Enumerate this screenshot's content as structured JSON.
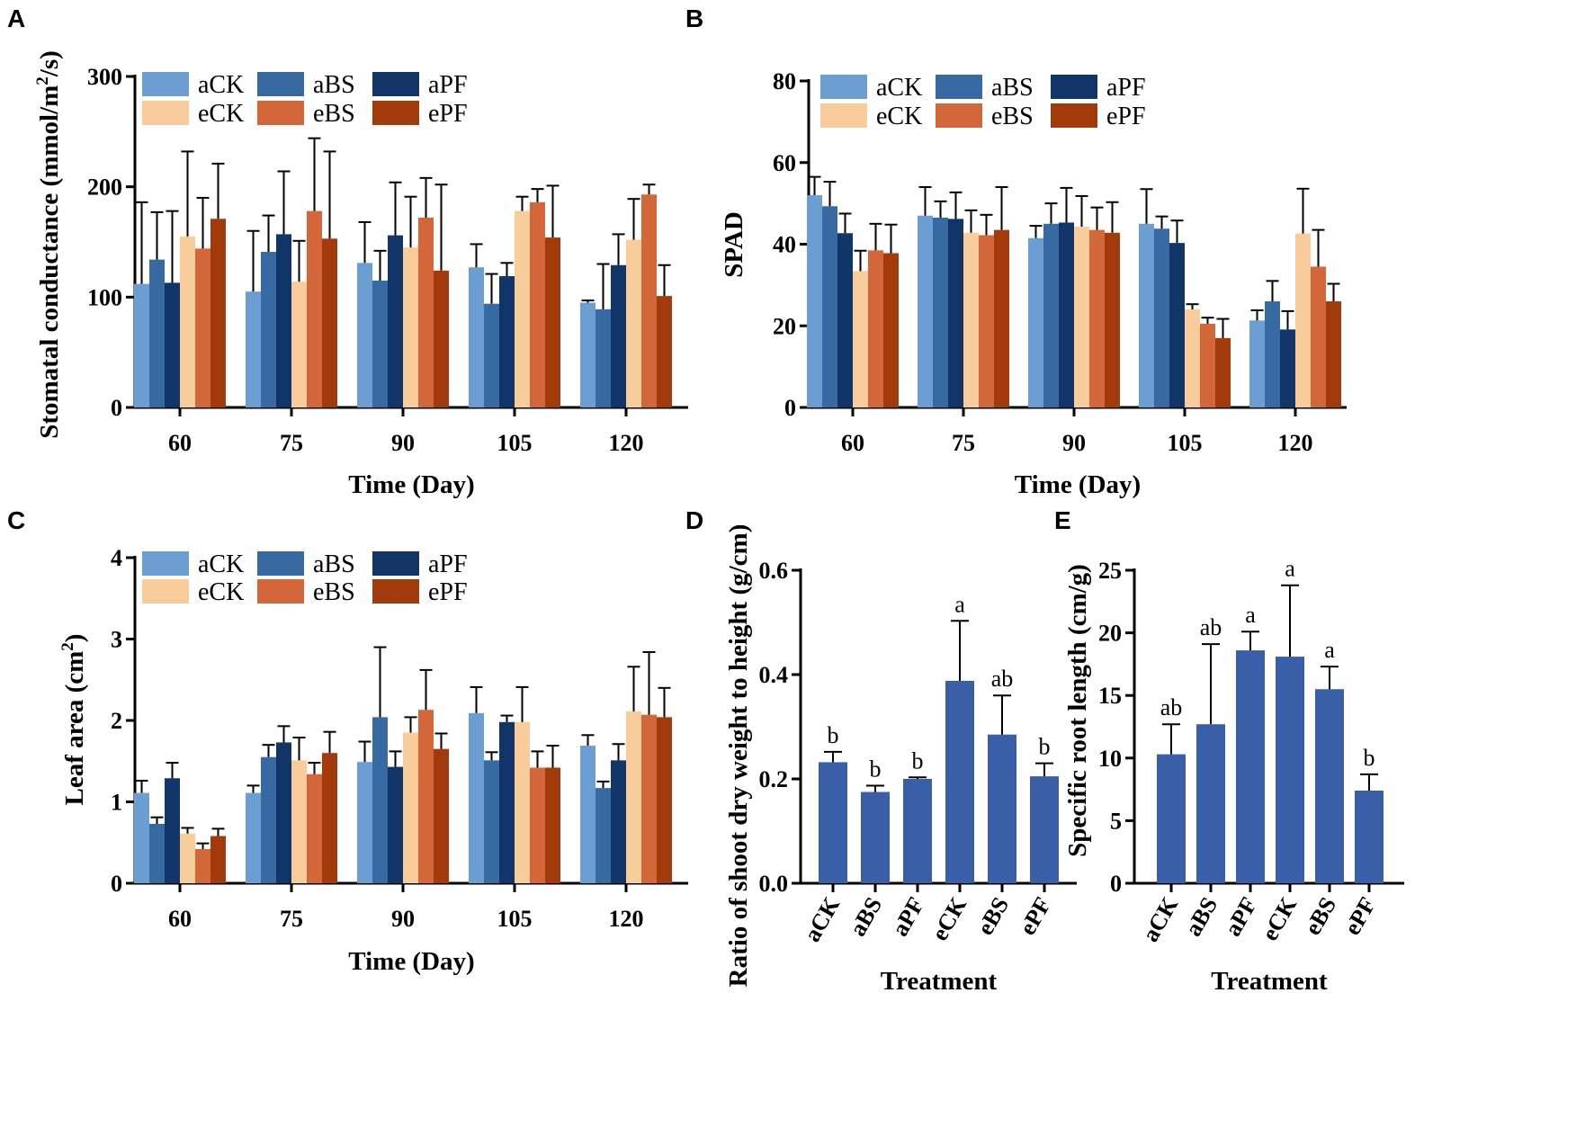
{
  "figure": {
    "series_colors": {
      "aCK": "#6b9fd4",
      "aBS": "#376aa3",
      "aPF": "#123569",
      "eCK": "#f9cc9b",
      "eBS": "#d4673a",
      "ePF": "#a33a0c",
      "single": "#3a5fa8"
    }
  },
  "chart_data": [
    {
      "id": "A",
      "panel": "A",
      "type": "bar",
      "title": "",
      "xlabel": "Time (Day)",
      "ylabel": "Stomatal conductance (mmol/m²/s)",
      "ylabel_main": "Stomatal conductance (mmol/m",
      "ylabel_sup": "2",
      "ylabel_tail": "/s)",
      "categories": [
        "60",
        "75",
        "90",
        "105",
        "120"
      ],
      "ylim": [
        0,
        300
      ],
      "yticks": [
        0,
        100,
        200,
        300
      ],
      "legend": [
        "aCK",
        "aBS",
        "aPF",
        "eCK",
        "eBS",
        "ePF"
      ],
      "series": [
        {
          "name": "aCK",
          "values": [
            112,
            105,
            131,
            127,
            95
          ],
          "errors": [
            74,
            55,
            37,
            21,
            2
          ]
        },
        {
          "name": "aBS",
          "values": [
            134,
            141,
            115,
            94,
            89
          ],
          "errors": [
            43,
            33,
            27,
            27,
            41
          ]
        },
        {
          "name": "aPF",
          "values": [
            113,
            157,
            156,
            119,
            129
          ],
          "errors": [
            65,
            57,
            48,
            12,
            28
          ]
        },
        {
          "name": "eCK",
          "values": [
            155,
            114,
            145,
            178,
            152
          ],
          "errors": [
            77,
            37,
            46,
            13,
            37
          ]
        },
        {
          "name": "eBS",
          "values": [
            144,
            178,
            172,
            186,
            193
          ],
          "errors": [
            46,
            66,
            36,
            12,
            9
          ]
        },
        {
          "name": "ePF",
          "values": [
            171,
            153,
            124,
            154,
            101
          ],
          "errors": [
            50,
            79,
            78,
            47,
            28
          ]
        }
      ]
    },
    {
      "id": "B",
      "panel": "B",
      "type": "bar",
      "title": "",
      "xlabel": "Time (Day)",
      "ylabel": "SPAD",
      "categories": [
        "60",
        "75",
        "90",
        "105",
        "120"
      ],
      "ylim": [
        0,
        80
      ],
      "yticks": [
        0,
        20,
        40,
        60,
        80
      ],
      "legend": [
        "aCK",
        "aBS",
        "aPF",
        "eCK",
        "eBS",
        "ePF"
      ],
      "series": [
        {
          "name": "aCK",
          "values": [
            52,
            47,
            41.5,
            45,
            21.3
          ],
          "errors": [
            4.5,
            7,
            3,
            8.5,
            2.5
          ]
        },
        {
          "name": "aBS",
          "values": [
            49.3,
            46.5,
            45,
            43.8,
            26
          ],
          "errors": [
            6,
            4,
            5,
            3,
            5
          ]
        },
        {
          "name": "aPF",
          "values": [
            42.7,
            46.2,
            45.3,
            40.3,
            19.1
          ],
          "errors": [
            4.8,
            6.5,
            8.5,
            5.5,
            4.5
          ]
        },
        {
          "name": "eCK",
          "values": [
            33.4,
            42.8,
            44.3,
            24,
            42.6
          ],
          "errors": [
            5,
            5.5,
            7.5,
            1.3,
            11
          ]
        },
        {
          "name": "eBS",
          "values": [
            38.5,
            42.2,
            43.5,
            20.5,
            34.5
          ],
          "errors": [
            6.5,
            5,
            5.5,
            1.5,
            9
          ]
        },
        {
          "name": "ePF",
          "values": [
            37.8,
            43.5,
            42.8,
            17,
            26
          ],
          "errors": [
            7,
            10.5,
            7.5,
            4.7,
            4.3
          ]
        }
      ]
    },
    {
      "id": "C",
      "panel": "C",
      "type": "bar",
      "title": "",
      "xlabel": "Time (Day)",
      "ylabel": "Leaf area (cm²)",
      "ylabel_main": "Leaf area (cm",
      "ylabel_sup": "2",
      "ylabel_tail": ")",
      "categories": [
        "60",
        "75",
        "90",
        "105",
        "120"
      ],
      "ylim": [
        0,
        4
      ],
      "yticks": [
        0,
        1,
        2,
        3,
        4
      ],
      "legend": [
        "aCK",
        "aBS",
        "aPF",
        "eCK",
        "eBS",
        "ePF"
      ],
      "series": [
        {
          "name": "aCK",
          "values": [
            1.11,
            1.11,
            1.49,
            2.09,
            1.69
          ],
          "errors": [
            0.15,
            0.09,
            0.25,
            0.32,
            0.13
          ]
        },
        {
          "name": "aBS",
          "values": [
            0.73,
            1.55,
            2.04,
            1.51,
            1.17
          ],
          "errors": [
            0.08,
            0.15,
            0.86,
            0.1,
            0.08
          ]
        },
        {
          "name": "aPF",
          "values": [
            1.29,
            1.73,
            1.43,
            1.98,
            1.51
          ],
          "errors": [
            0.19,
            0.2,
            0.19,
            0.08,
            0.2
          ]
        },
        {
          "name": "eCK",
          "values": [
            0.61,
            1.51,
            1.85,
            1.98,
            2.11
          ],
          "errors": [
            0.07,
            0.28,
            0.19,
            0.43,
            0.55
          ]
        },
        {
          "name": "eBS",
          "values": [
            0.42,
            1.34,
            2.13,
            1.42,
            2.07
          ],
          "errors": [
            0.07,
            0.14,
            0.49,
            0.2,
            0.77
          ]
        },
        {
          "name": "ePF",
          "values": [
            0.58,
            1.6,
            1.65,
            1.42,
            2.04
          ],
          "errors": [
            0.09,
            0.26,
            0.19,
            0.27,
            0.36
          ]
        }
      ]
    },
    {
      "id": "D",
      "panel": "D",
      "type": "bar",
      "title": "",
      "xlabel": "Treatment",
      "ylabel": "Ratio of shoot dry weight to height (g/cm)",
      "categories": [
        "aCK",
        "aBS",
        "aPF",
        "eCK",
        "eBS",
        "ePF"
      ],
      "values": [
        0.232,
        0.175,
        0.2,
        0.388,
        0.285,
        0.205
      ],
      "errors": [
        0.02,
        0.012,
        0.003,
        0.115,
        0.075,
        0.025
      ],
      "significance": [
        "b",
        "b",
        "b",
        "a",
        "ab",
        "b"
      ],
      "ylim": [
        0,
        0.6
      ],
      "yticks": [
        "0.0",
        "0.2",
        "0.4",
        "0.6"
      ]
    },
    {
      "id": "E",
      "panel": "E",
      "type": "bar",
      "title": "",
      "xlabel": "Treatment",
      "ylabel": "Specific root length (cm/g)",
      "categories": [
        "aCK",
        "aBS",
        "aPF",
        "eCK",
        "eBS",
        "ePF"
      ],
      "values": [
        10.3,
        12.7,
        18.6,
        18.1,
        15.5,
        7.4
      ],
      "errors": [
        2.4,
        6.4,
        1.5,
        5.7,
        1.8,
        1.3
      ],
      "significance": [
        "ab",
        "ab",
        "a",
        "a",
        "a",
        "b"
      ],
      "ylim": [
        0,
        25
      ],
      "yticks": [
        0,
        5,
        10,
        15,
        20,
        25
      ]
    }
  ]
}
